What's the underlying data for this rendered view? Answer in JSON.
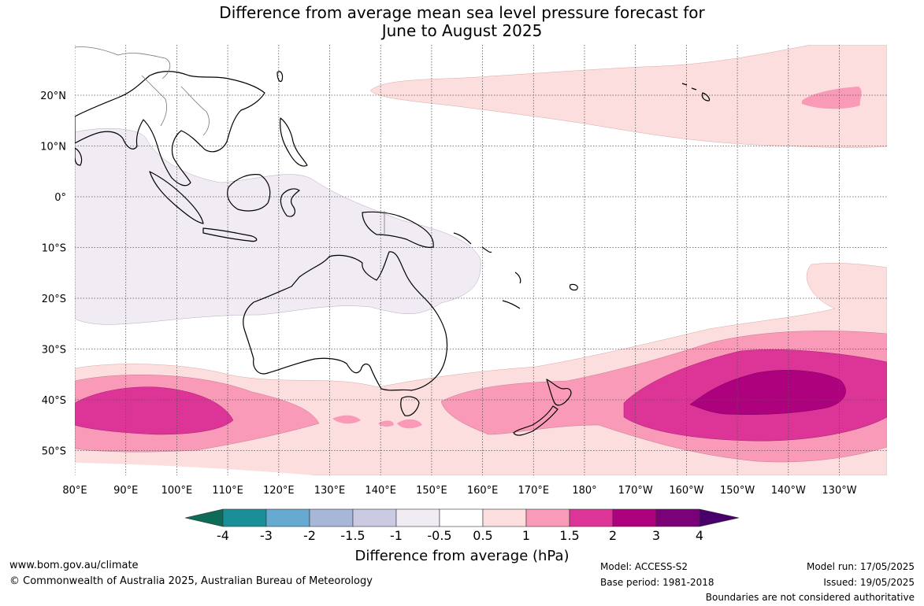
{
  "title": {
    "line1": "Difference from average mean sea level pressure forecast for",
    "line2": "June to August 2025"
  },
  "map": {
    "lat_labels": [
      "20°N",
      "10°N",
      "0°",
      "10°S",
      "20°S",
      "30°S",
      "40°S",
      "50°S"
    ],
    "lon_labels": [
      "80°E",
      "90°E",
      "100°E",
      "110°E",
      "120°E",
      "130°E",
      "140°E",
      "150°E",
      "160°E",
      "170°E",
      "180°",
      "170°W",
      "160°W",
      "150°W",
      "140°W",
      "130°W"
    ],
    "lon_range": [
      80,
      236
    ],
    "lat_range": [
      -55,
      30
    ],
    "land_outline_color": "#000000"
  },
  "colorbar": {
    "title": "Difference from average (hPa)",
    "levels": [
      "-4",
      "-3",
      "-2",
      "-1.5",
      "-1",
      "-0.5",
      "0.5",
      "1",
      "1.5",
      "2",
      "3",
      "4"
    ],
    "colors": {
      "below_-4": "#0d6b58",
      "-4_-3": "#1b8f98",
      "-3_-2": "#66a9d1",
      "-2_-1.5": "#a7b7d8",
      "-1.5_-1": "#cacbe2",
      "-1_-0.5": "#f1ebf4",
      "-0.5_0.5": "#ffffff",
      "0.5_1": "#fcdede",
      "1_1.5": "#f89ab8",
      "1.5_2": "#dd3497",
      "2_3": "#ae017e",
      "3_4": "#7a0177",
      "above_4": "#49006a"
    }
  },
  "footer": {
    "url": "www.bom.gov.au/climate",
    "copyright": "© Commonwealth of Australia 2025, Australian Bureau of Meteorology",
    "model": "Model: ACCESS-S2",
    "base_period": "Base period: 1981-2018",
    "model_run": "Model run: 17/05/2025",
    "issued": "Issued: 19/05/2025",
    "disclaimer": "Boundaries are not considered authoritative"
  }
}
